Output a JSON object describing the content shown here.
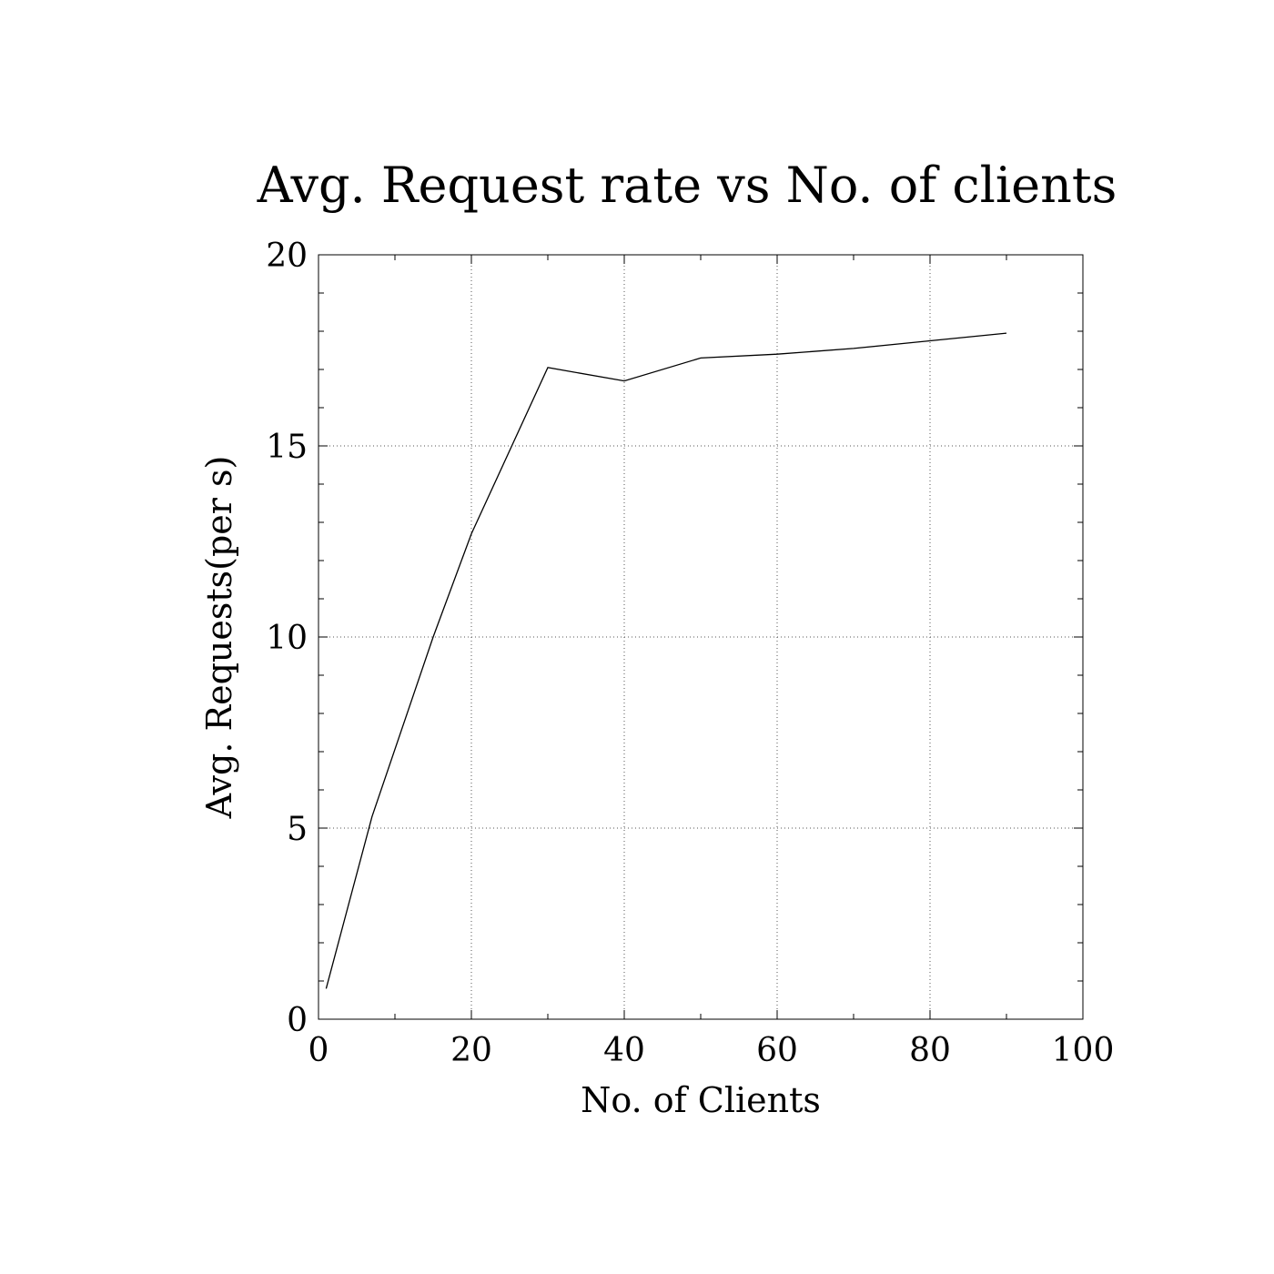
{
  "chart_data": {
    "type": "line",
    "title": "Avg. Request rate vs No. of clients",
    "xlabel": "No. of Clients",
    "ylabel": "Avg. Requests(per s)",
    "xlim": [
      0,
      100
    ],
    "ylim": [
      0,
      20
    ],
    "x_ticks": [
      "0",
      "20",
      "40",
      "60",
      "80",
      "100"
    ],
    "y_ticks": [
      "0",
      "5",
      "10",
      "15",
      "20"
    ],
    "grid": true,
    "legend": "none",
    "series": [
      {
        "x": [
          1,
          7,
          15,
          20,
          30,
          40,
          50,
          60,
          70,
          80,
          90
        ],
        "y": [
          0.8,
          5.3,
          10.0,
          12.7,
          17.05,
          16.7,
          17.3,
          17.4,
          17.55,
          17.75,
          17.95
        ]
      }
    ],
    "colors": {
      "line": "#000000",
      "grid": "#555555",
      "frame": "#000000"
    }
  }
}
